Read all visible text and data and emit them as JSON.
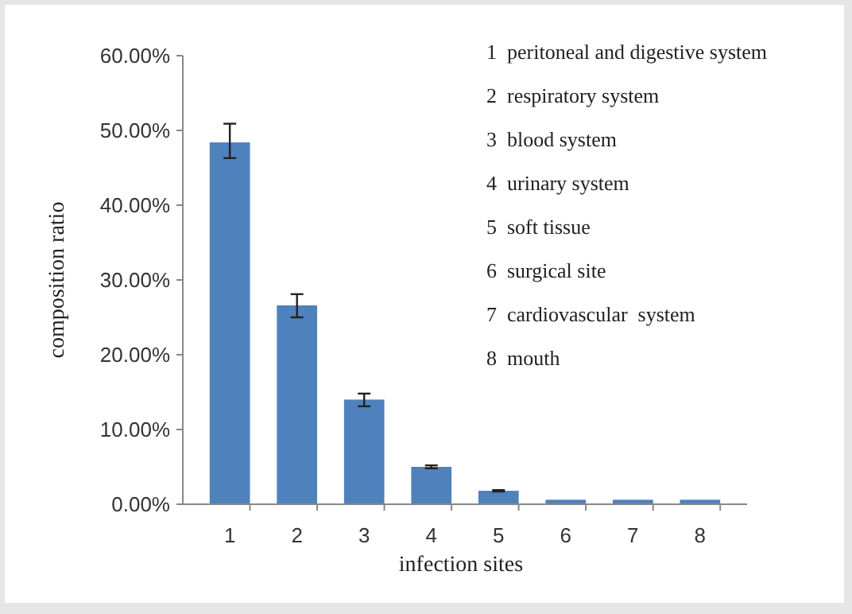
{
  "chart_data": {
    "type": "bar",
    "xlabel": "infection sites",
    "ylabel": "composition  ratio",
    "categories": [
      "1",
      "2",
      "3",
      "4",
      "5",
      "6",
      "7",
      "8"
    ],
    "values": [
      48.4,
      26.6,
      14.0,
      5.0,
      1.8,
      0.6,
      0.6,
      0.6
    ],
    "errors": [
      [
        46.3,
        50.9
      ],
      [
        25.0,
        28.1
      ],
      [
        13.1,
        14.8
      ],
      [
        4.8,
        5.2
      ],
      [
        1.7,
        1.9
      ],
      null,
      null,
      null
    ],
    "color": "#4f81bd",
    "ylim": [
      0,
      60
    ],
    "yticks": [
      {
        "value": 0,
        "label": "0.00%"
      },
      {
        "value": 10,
        "label": "10.00%"
      },
      {
        "value": 20,
        "label": "20.00%"
      },
      {
        "value": 30,
        "label": "30.00%"
      },
      {
        "value": 40,
        "label": "40.00%"
      },
      {
        "value": 50,
        "label": "50.00%"
      },
      {
        "value": 60,
        "label": "60.00%"
      }
    ],
    "grid": false,
    "annotations": [
      "1  peritoneal and digestive system",
      "2  respiratory system",
      "3  blood system",
      "4  urinary system",
      "5  soft tissue",
      "6  surgical site",
      "7  cardiovascular  system",
      "8  mouth"
    ]
  }
}
